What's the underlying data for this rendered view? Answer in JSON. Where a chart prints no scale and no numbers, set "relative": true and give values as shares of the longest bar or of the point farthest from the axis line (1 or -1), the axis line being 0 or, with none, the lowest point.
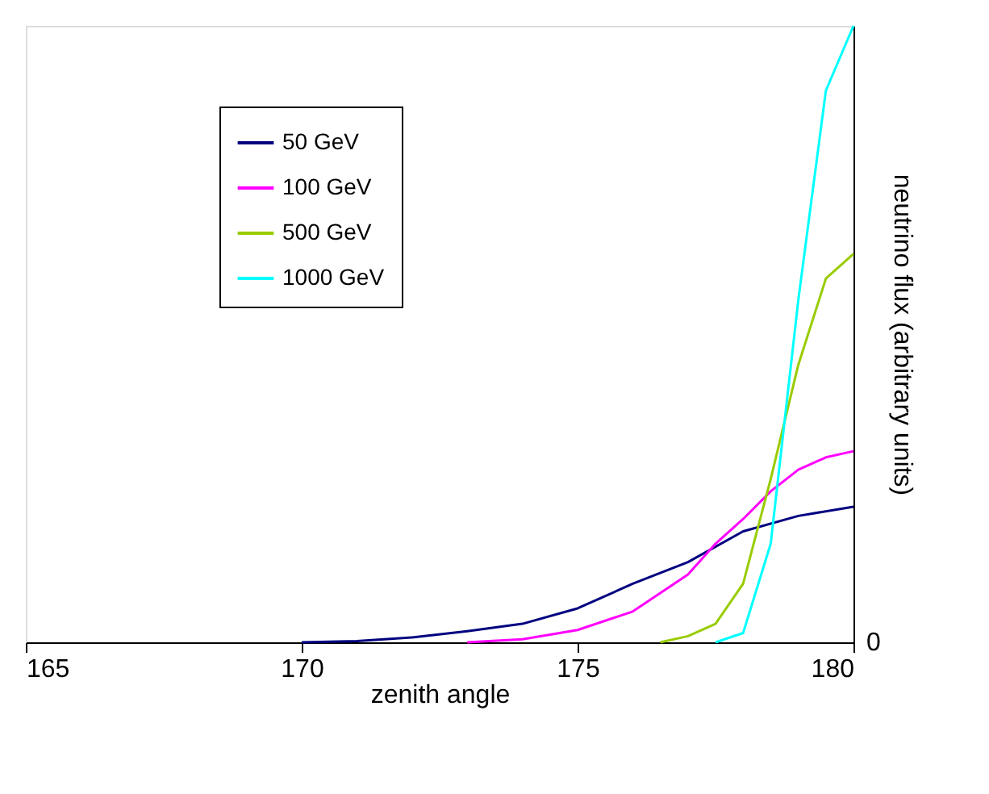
{
  "chart_data": {
    "type": "line",
    "xlabel": "zenith angle",
    "ylabel": "neutrino flux (arbitrary units)",
    "relative": true,
    "xlim": [
      165,
      180
    ],
    "xticks": [
      165,
      170,
      175,
      180
    ],
    "legend": "top left",
    "grid": false,
    "marker": "none",
    "line_style": "solid",
    "annotations": [
      "0"
    ],
    "series": [
      {
        "name": "50 GeV",
        "color": "#000080",
        "x": [
          170,
          171,
          172,
          173,
          174,
          175,
          176,
          177,
          178,
          179,
          180
        ],
        "values": [
          0,
          0.002,
          0.008,
          0.018,
          0.03,
          0.055,
          0.095,
          0.13,
          0.18,
          0.205,
          0.22
        ]
      },
      {
        "name": "100 GeV",
        "color": "#ff00ff",
        "x": [
          173,
          174,
          175,
          176,
          177,
          177.5,
          178,
          178.5,
          179,
          179.5,
          180
        ],
        "values": [
          0,
          0.005,
          0.02,
          0.05,
          0.11,
          0.16,
          0.2,
          0.245,
          0.28,
          0.3,
          0.31
        ]
      },
      {
        "name": "500 GeV",
        "color": "#99cc00",
        "x": [
          176.5,
          177,
          177.5,
          178,
          178.5,
          179,
          179.5,
          180
        ],
        "values": [
          0,
          0.01,
          0.03,
          0.095,
          0.265,
          0.45,
          0.59,
          0.63
        ]
      },
      {
        "name": "1000 GeV",
        "color": "#00ffff",
        "x": [
          177.5,
          178,
          178.5,
          179,
          179.5,
          180
        ],
        "values": [
          0,
          0.015,
          0.16,
          0.555,
          0.895,
          1
        ]
      }
    ]
  }
}
